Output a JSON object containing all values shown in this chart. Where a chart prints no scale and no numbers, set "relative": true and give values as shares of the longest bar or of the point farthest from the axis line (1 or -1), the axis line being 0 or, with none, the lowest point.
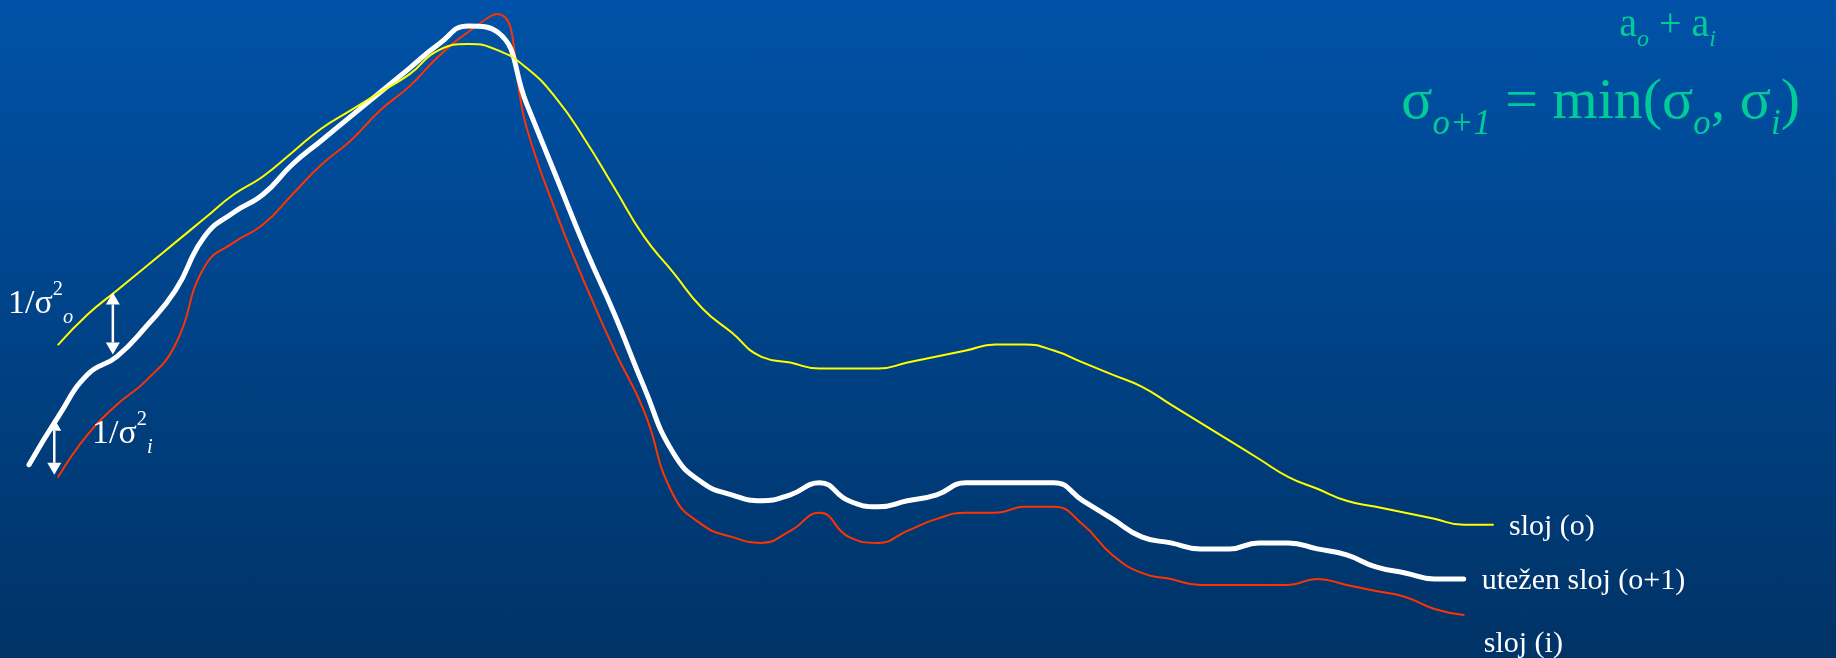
{
  "chart_data": {
    "type": "line",
    "relative": true,
    "categories": [
      null,
      null,
      null,
      null,
      null,
      null,
      null,
      null,
      null,
      null,
      null,
      null,
      null,
      null,
      null,
      null,
      null,
      null,
      null,
      null,
      null,
      null,
      null,
      null,
      null,
      null,
      null,
      null,
      null,
      null,
      null,
      null,
      null,
      null,
      null,
      null,
      null,
      null,
      null,
      null,
      null,
      null,
      null,
      null,
      null,
      null,
      null,
      null,
      null,
      null,
      null
    ],
    "series": [
      {
        "name": "sloj (o)",
        "color": "#ffff00",
        "values": [
          null,
          0.45,
          0.5,
          0.54,
          0.58,
          0.62,
          0.66,
          0.7,
          0.73,
          0.77,
          0.81,
          0.84,
          0.87,
          0.9,
          0.94,
          0.95,
          0.94,
          0.91,
          0.86,
          0.79,
          0.71,
          0.63,
          0.57,
          0.51,
          0.47,
          0.43,
          0.42,
          0.41,
          0.41,
          0.41,
          0.42,
          0.43,
          0.44,
          0.45,
          0.45,
          0.44,
          0.42,
          0.4,
          0.38,
          0.35,
          0.32,
          0.29,
          0.26,
          0.23,
          0.21,
          0.19,
          0.18,
          0.17,
          0.16,
          0.15,
          0.15
        ]
      },
      {
        "name": "utežen sloj (o+1)",
        "color": "#ffffff",
        "values": [
          0.25,
          0.33,
          0.4,
          0.43,
          0.48,
          0.54,
          0.63,
          0.67,
          0.7,
          0.75,
          0.79,
          0.83,
          0.87,
          0.91,
          0.95,
          0.98,
          0.97,
          0.85,
          0.73,
          0.61,
          0.5,
          0.38,
          0.27,
          0.22,
          0.2,
          0.19,
          0.2,
          0.22,
          0.19,
          0.18,
          0.19,
          0.2,
          0.22,
          0.22,
          0.22,
          0.22,
          0.19,
          0.16,
          0.13,
          0.12,
          0.11,
          0.11,
          0.12,
          0.12,
          0.11,
          0.1,
          0.08,
          0.07,
          0.06,
          0.06,
          null
        ]
      },
      {
        "name": "sloj (i)",
        "color": "#ff3300",
        "values": [
          null,
          0.23,
          0.3,
          0.35,
          0.39,
          0.45,
          0.58,
          0.62,
          0.65,
          0.7,
          0.75,
          0.79,
          0.84,
          0.88,
          0.93,
          0.97,
          1,
          0.81,
          0.67,
          0.55,
          0.44,
          0.34,
          0.2,
          0.15,
          0.13,
          0.12,
          0.14,
          0.17,
          0.13,
          0.12,
          0.14,
          0.16,
          0.17,
          0.17,
          0.18,
          0.18,
          0.15,
          0.1,
          0.07,
          0.06,
          0.05,
          0.05,
          0.05,
          0.05,
          0.06,
          0.05,
          0.04,
          0.03,
          0.01,
          0,
          null
        ]
      }
    ],
    "annotations": [
      "a$_{o}$ + a$_{i}$",
      "σ$_{o+1}$ = min(σ$_{o}$, σ$_{i}$)",
      "1/σ$^{2}$$_{o}$",
      "1/σ$^{2}$$_{i}$"
    ],
    "legend": false,
    "grid": false
  }
}
